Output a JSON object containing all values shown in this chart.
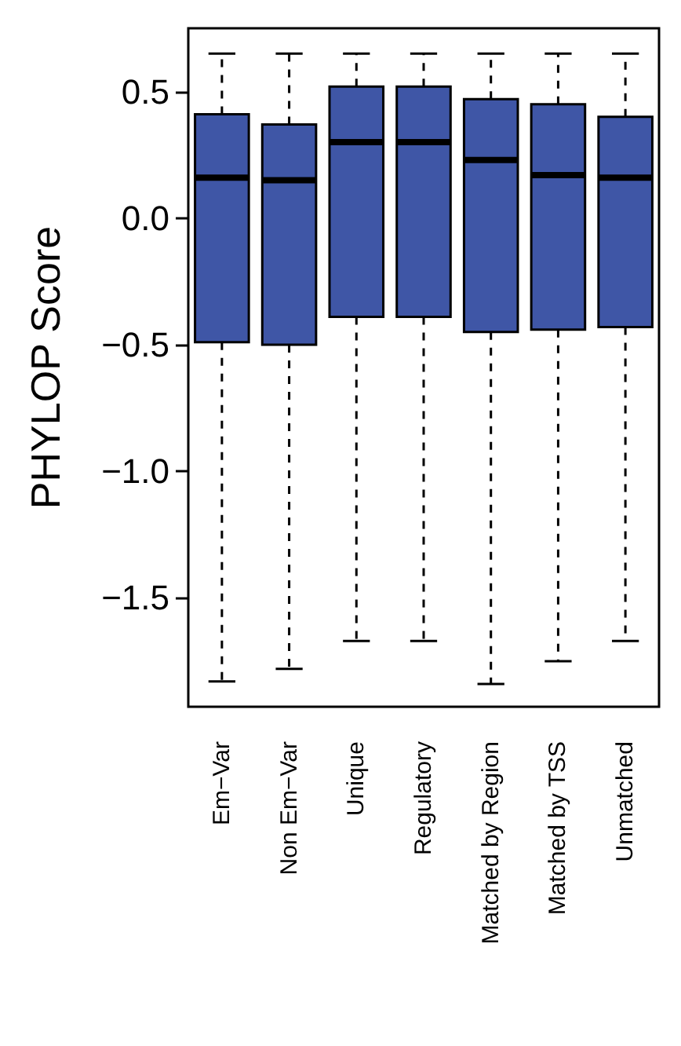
{
  "chart_data": {
    "type": "box",
    "ylabel": "PHYLOP Score",
    "color": "#3f56a6",
    "categories": [
      "Em−Var",
      "Non Em−Var",
      "Unique",
      "Regulatory",
      "Matched by Region",
      "Matched by TSS",
      "Unmatched"
    ],
    "ylim": [
      -1.93,
      0.75
    ],
    "yticks": [
      {
        "value": -1.5,
        "label": "−1.5"
      },
      {
        "value": -1,
        "label": "−1.0"
      },
      {
        "value": -0.5,
        "label": "−0.5"
      },
      {
        "value": 0,
        "label": "0.0"
      },
      {
        "value": 0.5,
        "label": "0.5"
      }
    ],
    "boxes": [
      {
        "low": -1.83,
        "q1": -0.49,
        "median": 0.16,
        "q3": 0.41,
        "high": 0.65
      },
      {
        "low": -1.78,
        "q1": -0.5,
        "median": 0.15,
        "q3": 0.37,
        "high": 0.65
      },
      {
        "low": -1.67,
        "q1": -0.39,
        "median": 0.3,
        "q3": 0.52,
        "high": 0.65
      },
      {
        "low": -1.67,
        "q1": -0.39,
        "median": 0.3,
        "q3": 0.52,
        "high": 0.65
      },
      {
        "low": -1.84,
        "q1": -0.45,
        "median": 0.23,
        "q3": 0.47,
        "high": 0.65
      },
      {
        "low": -1.75,
        "q1": -0.44,
        "median": 0.17,
        "q3": 0.45,
        "high": 0.65
      },
      {
        "low": -1.67,
        "q1": -0.43,
        "median": 0.16,
        "q3": 0.4,
        "high": 0.65
      }
    ]
  }
}
